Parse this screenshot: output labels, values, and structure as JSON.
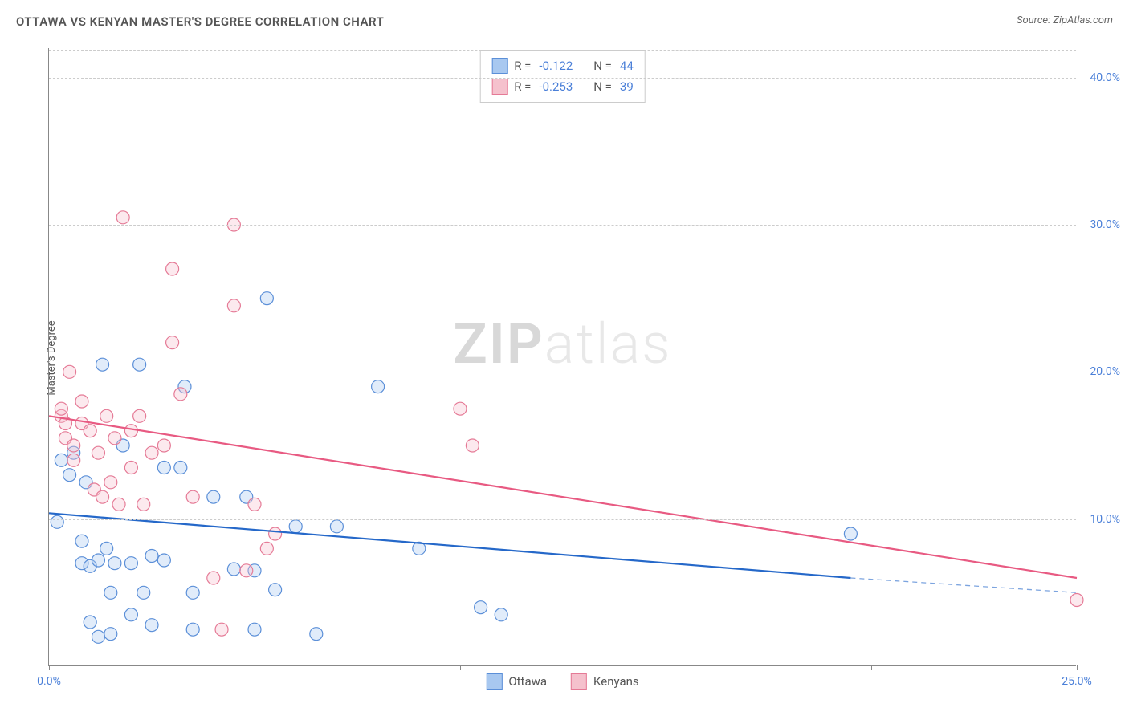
{
  "title": "OTTAWA VS KENYAN MASTER'S DEGREE CORRELATION CHART",
  "source": "Source: ZipAtlas.com",
  "y_axis_label": "Master's Degree",
  "watermark": {
    "bold": "ZIP",
    "light": "atlas"
  },
  "chart": {
    "type": "scatter",
    "xlim": [
      0,
      25
    ],
    "ylim": [
      0,
      42
    ],
    "x_ticks": [
      0,
      5,
      10,
      15,
      20,
      25
    ],
    "x_tick_labels": [
      "0.0%",
      "",
      "",
      "",
      "",
      "25.0%"
    ],
    "y_gridlines": [
      10,
      20,
      30,
      40
    ],
    "y_tick_labels": [
      "10.0%",
      "20.0%",
      "30.0%",
      "40.0%"
    ],
    "background_color": "#ffffff",
    "grid_color": "#cccccc",
    "axis_color": "#888888",
    "marker_radius": 8,
    "marker_stroke_width": 1.2,
    "marker_fill_opacity": 0.35,
    "line_width": 2.2
  },
  "series": [
    {
      "name": "Ottawa",
      "color_fill": "#a8c8f0",
      "color_stroke": "#5b8fd8",
      "color_line": "#2568c9",
      "R": "-0.122",
      "N": "44",
      "trend": {
        "x1": 0,
        "y1": 10.4,
        "x2": 19.5,
        "y2": 6.0,
        "x2_ext": 25,
        "y2_ext": 5.0
      },
      "points": [
        [
          0.2,
          9.8
        ],
        [
          0.3,
          14.0
        ],
        [
          0.5,
          13.0
        ],
        [
          0.6,
          14.5
        ],
        [
          0.8,
          8.5
        ],
        [
          0.8,
          7.0
        ],
        [
          0.9,
          12.5
        ],
        [
          1.0,
          6.8
        ],
        [
          1.0,
          3.0
        ],
        [
          1.2,
          7.2
        ],
        [
          1.2,
          2.0
        ],
        [
          1.3,
          20.5
        ],
        [
          1.4,
          8.0
        ],
        [
          1.5,
          5.0
        ],
        [
          1.5,
          2.2
        ],
        [
          1.6,
          7.0
        ],
        [
          1.8,
          15.0
        ],
        [
          2.0,
          7.0
        ],
        [
          2.0,
          3.5
        ],
        [
          2.2,
          20.5
        ],
        [
          2.3,
          5.0
        ],
        [
          2.5,
          7.5
        ],
        [
          2.5,
          2.8
        ],
        [
          2.8,
          13.5
        ],
        [
          2.8,
          7.2
        ],
        [
          3.2,
          13.5
        ],
        [
          3.3,
          19.0
        ],
        [
          3.5,
          5.0
        ],
        [
          3.5,
          2.5
        ],
        [
          4.0,
          11.5
        ],
        [
          4.5,
          6.6
        ],
        [
          4.8,
          11.5
        ],
        [
          5.0,
          2.5
        ],
        [
          5.0,
          6.5
        ],
        [
          5.3,
          25.0
        ],
        [
          5.5,
          5.2
        ],
        [
          6.0,
          9.5
        ],
        [
          6.5,
          2.2
        ],
        [
          7.0,
          9.5
        ],
        [
          8.0,
          19.0
        ],
        [
          9.0,
          8.0
        ],
        [
          10.5,
          4.0
        ],
        [
          11.0,
          3.5
        ],
        [
          19.5,
          9.0
        ]
      ]
    },
    {
      "name": "Kenyans",
      "color_fill": "#f5c1cd",
      "color_stroke": "#e57a96",
      "color_line": "#e85a82",
      "R": "-0.253",
      "N": "39",
      "trend": {
        "x1": 0,
        "y1": 17.0,
        "x2": 25,
        "y2": 6.0
      },
      "points": [
        [
          0.3,
          17.0
        ],
        [
          0.3,
          17.5
        ],
        [
          0.4,
          15.5
        ],
        [
          0.4,
          16.5
        ],
        [
          0.5,
          20.0
        ],
        [
          0.6,
          15.0
        ],
        [
          0.6,
          14.0
        ],
        [
          0.8,
          16.5
        ],
        [
          0.8,
          18.0
        ],
        [
          1.0,
          16.0
        ],
        [
          1.1,
          12.0
        ],
        [
          1.2,
          14.5
        ],
        [
          1.3,
          11.5
        ],
        [
          1.4,
          17.0
        ],
        [
          1.5,
          12.5
        ],
        [
          1.6,
          15.5
        ],
        [
          1.7,
          11.0
        ],
        [
          1.8,
          30.5
        ],
        [
          2.0,
          16.0
        ],
        [
          2.0,
          13.5
        ],
        [
          2.2,
          17.0
        ],
        [
          2.3,
          11.0
        ],
        [
          2.5,
          14.5
        ],
        [
          2.8,
          15.0
        ],
        [
          3.0,
          22.0
        ],
        [
          3.0,
          27.0
        ],
        [
          3.2,
          18.5
        ],
        [
          3.5,
          11.5
        ],
        [
          4.0,
          6.0
        ],
        [
          4.2,
          2.5
        ],
        [
          4.5,
          24.5
        ],
        [
          4.5,
          30.0
        ],
        [
          4.8,
          6.5
        ],
        [
          5.0,
          11.0
        ],
        [
          5.3,
          8.0
        ],
        [
          5.5,
          9.0
        ],
        [
          10.0,
          17.5
        ],
        [
          10.3,
          15.0
        ],
        [
          25.0,
          4.5
        ]
      ]
    }
  ],
  "legend_top": {
    "labels": {
      "R": "R =",
      "N": "N ="
    }
  },
  "legend_bottom": [
    {
      "label": "Ottawa",
      "fill": "#a8c8f0",
      "stroke": "#5b8fd8"
    },
    {
      "label": "Kenyans",
      "fill": "#f5c1cd",
      "stroke": "#e57a96"
    }
  ]
}
